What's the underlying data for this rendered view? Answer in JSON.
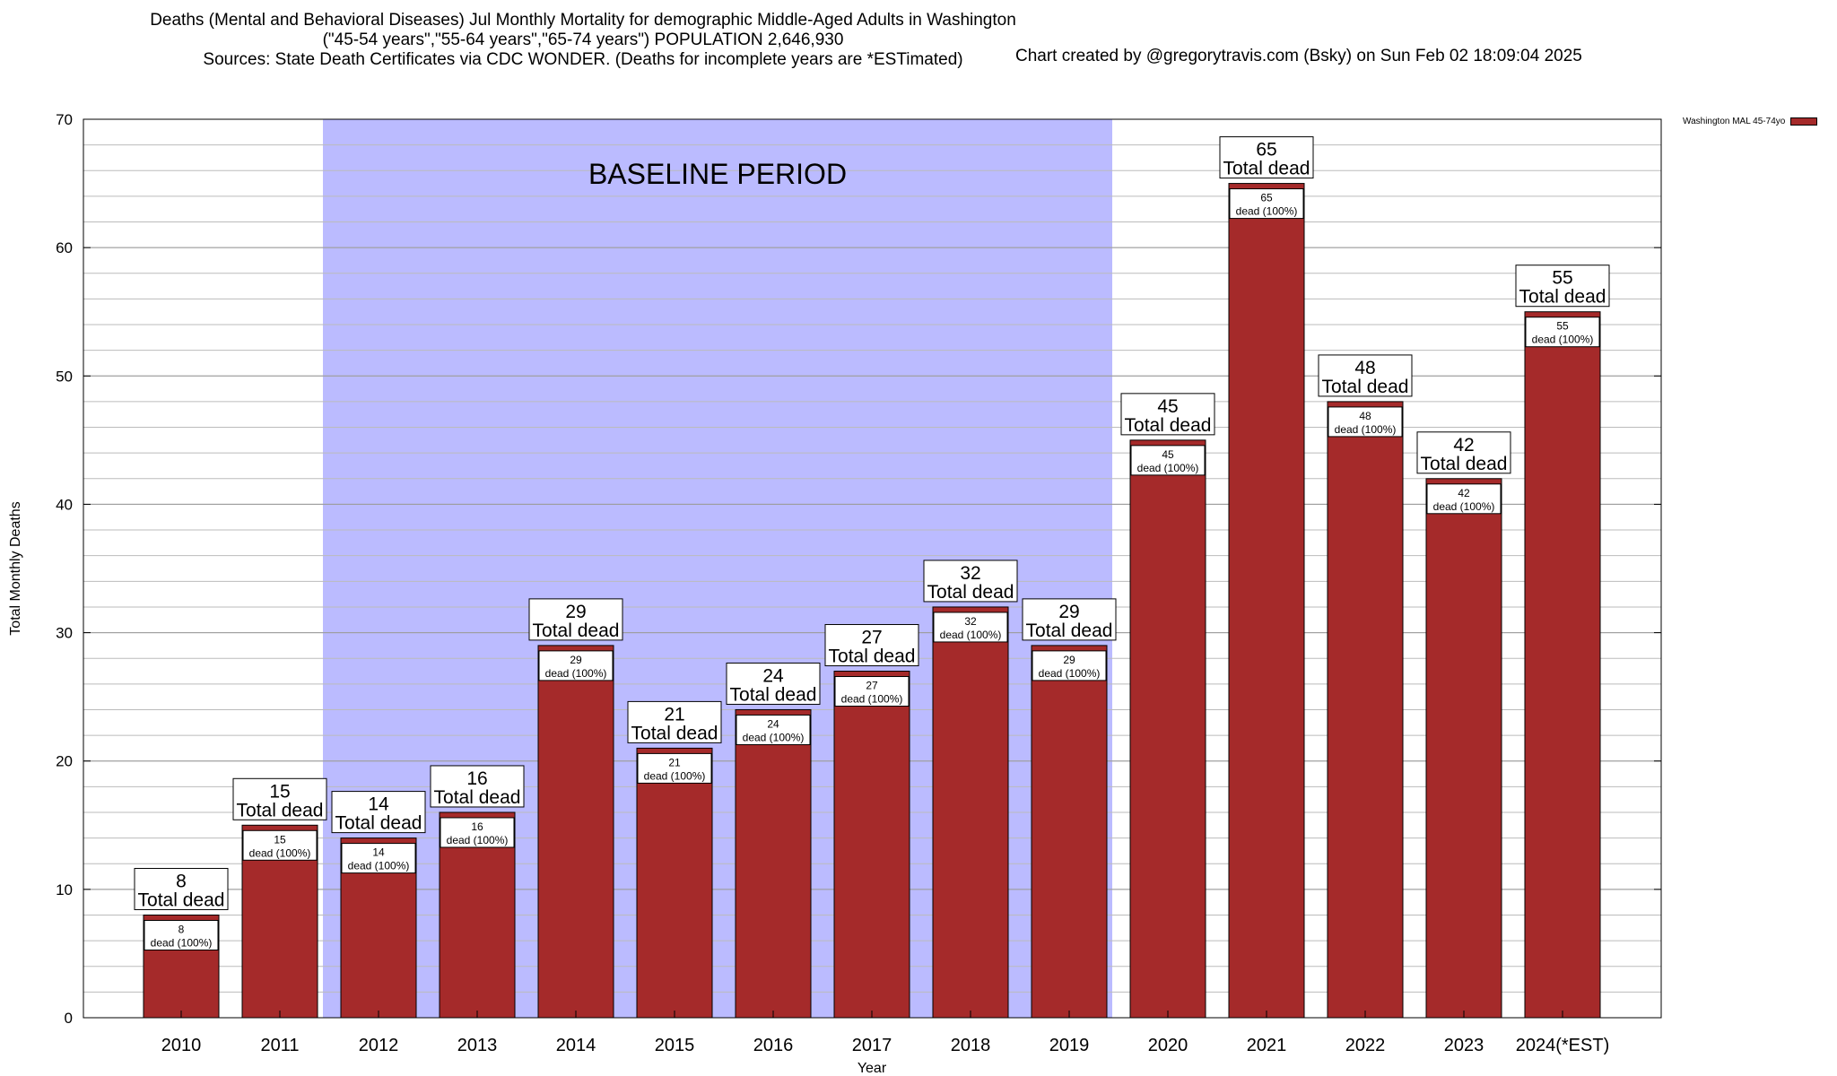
{
  "header": {
    "title_line1": "Deaths (Mental and Behavioral Diseases) Jul Monthly Mortality for demographic Middle-Aged Adults in Washington",
    "title_line2": "(\"45-54 years\",\"55-64 years\",\"65-74 years\") POPULATION 2,646,930",
    "title_line3": "Sources: State Death Certificates via CDC WONDER. (Deaths for incomplete years are *ESTimated)",
    "credit": "Chart created by @gregorytravis.com (Bsky) on Sun Feb 02 18:09:04 2025"
  },
  "chart_data": {
    "type": "bar",
    "title": "Deaths (Mental and Behavioral Diseases) Jul Monthly Mortality for demographic Middle-Aged Adults in Washington",
    "xlabel": "Year",
    "ylabel": "Total Monthly Deaths",
    "ylim": [
      0,
      70
    ],
    "yticks": [
      0,
      10,
      20,
      30,
      40,
      50,
      60,
      70
    ],
    "grid": true,
    "legend_position": "top-right",
    "categories": [
      "2010",
      "2011",
      "2012",
      "2013",
      "2014",
      "2015",
      "2016",
      "2017",
      "2018",
      "2019",
      "2020",
      "2021",
      "2022",
      "2023",
      "2024(*EST)"
    ],
    "series": [
      {
        "name": "Washington MAL 45-74yo",
        "color": "#a52a2a",
        "values": [
          8,
          15,
          14,
          16,
          29,
          21,
          24,
          27,
          32,
          29,
          45,
          65,
          48,
          42,
          55
        ]
      }
    ],
    "total_label": "Total dead",
    "inner_label_suffix": "dead (100%)",
    "baseline_region": {
      "label": "BASELINE PERIOD",
      "from": "2012",
      "to": "2019",
      "color": "#bbbbff"
    }
  }
}
